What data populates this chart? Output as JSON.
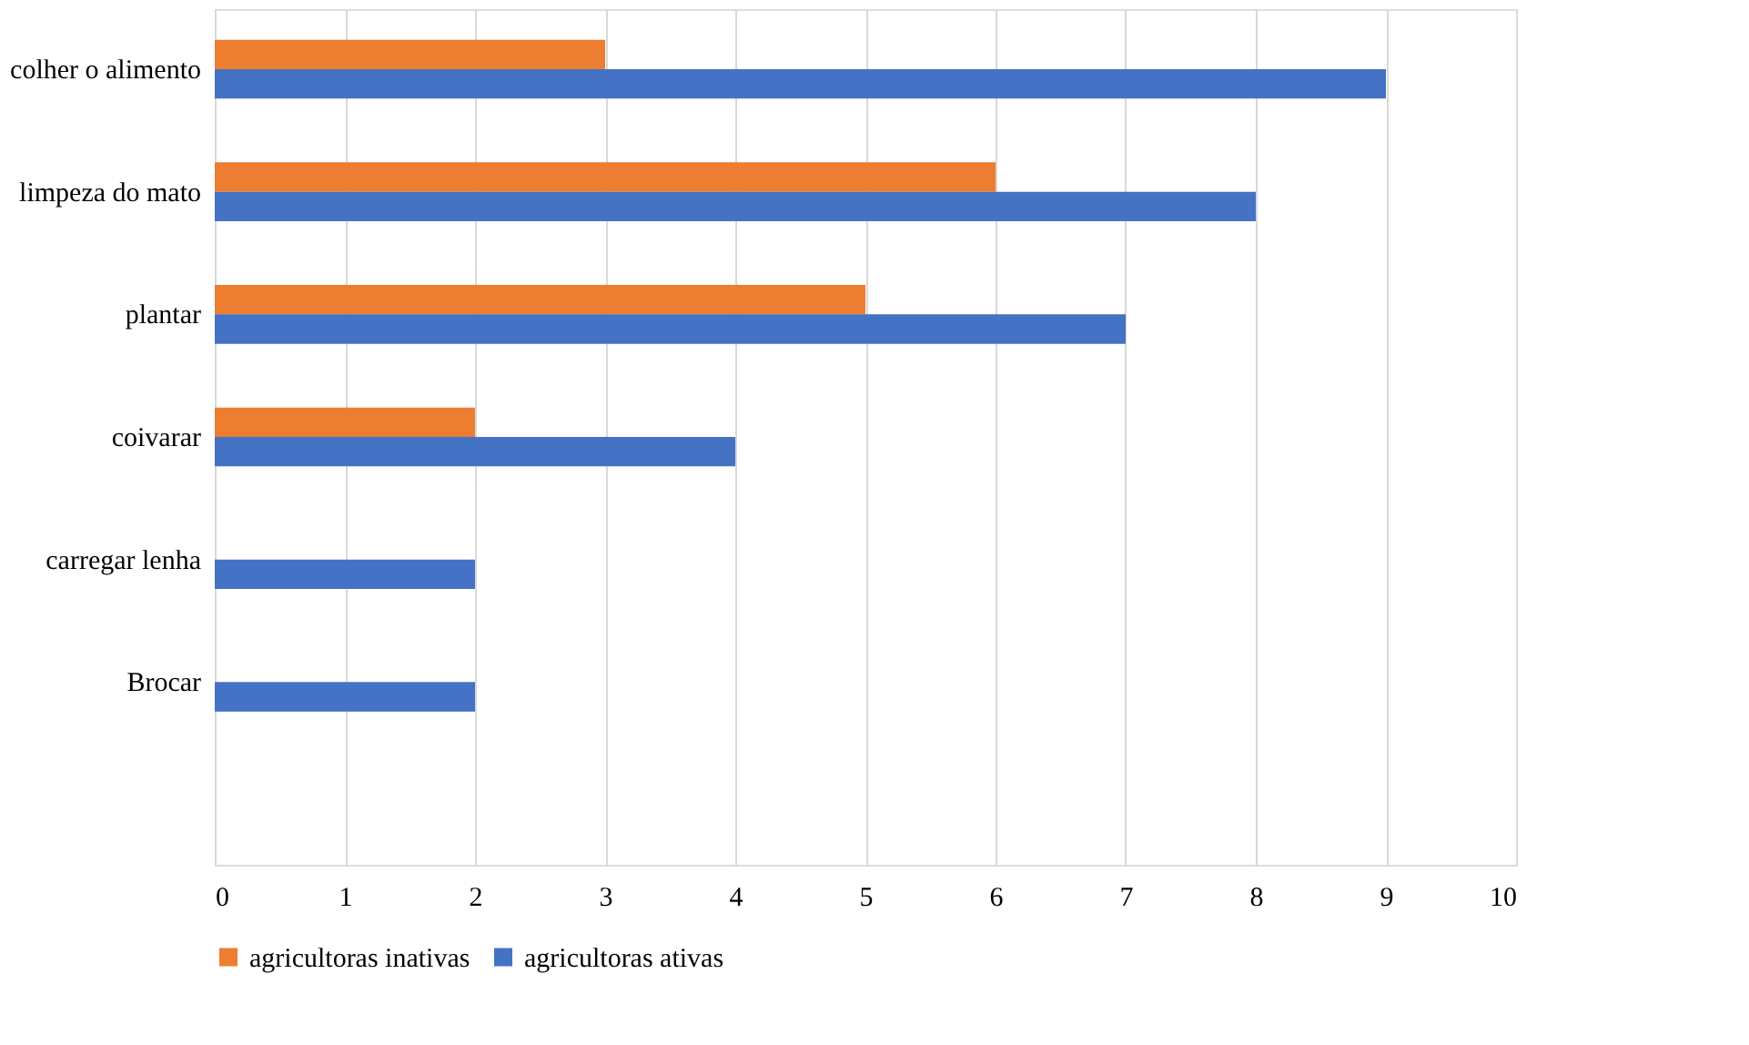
{
  "chart_data": {
    "type": "bar",
    "orientation": "horizontal",
    "categories": [
      "colher o alimento",
      "limpeza do mato",
      "plantar",
      "coivarar",
      "carregar lenha",
      "Brocar",
      null
    ],
    "series": [
      {
        "name": "agricultoras inativas",
        "color": "#ed7d31",
        "values": [
          3,
          6,
          5,
          2,
          null,
          null,
          null
        ]
      },
      {
        "name": "agricultoras ativas",
        "color": "#4472c4",
        "values": [
          9,
          8,
          7,
          4,
          2,
          2,
          null
        ]
      }
    ],
    "xlim": [
      0,
      10
    ],
    "xticks": [
      0,
      1,
      2,
      3,
      4,
      5,
      6,
      7,
      8,
      9,
      10
    ],
    "grid": "x",
    "legend": "bottom"
  }
}
